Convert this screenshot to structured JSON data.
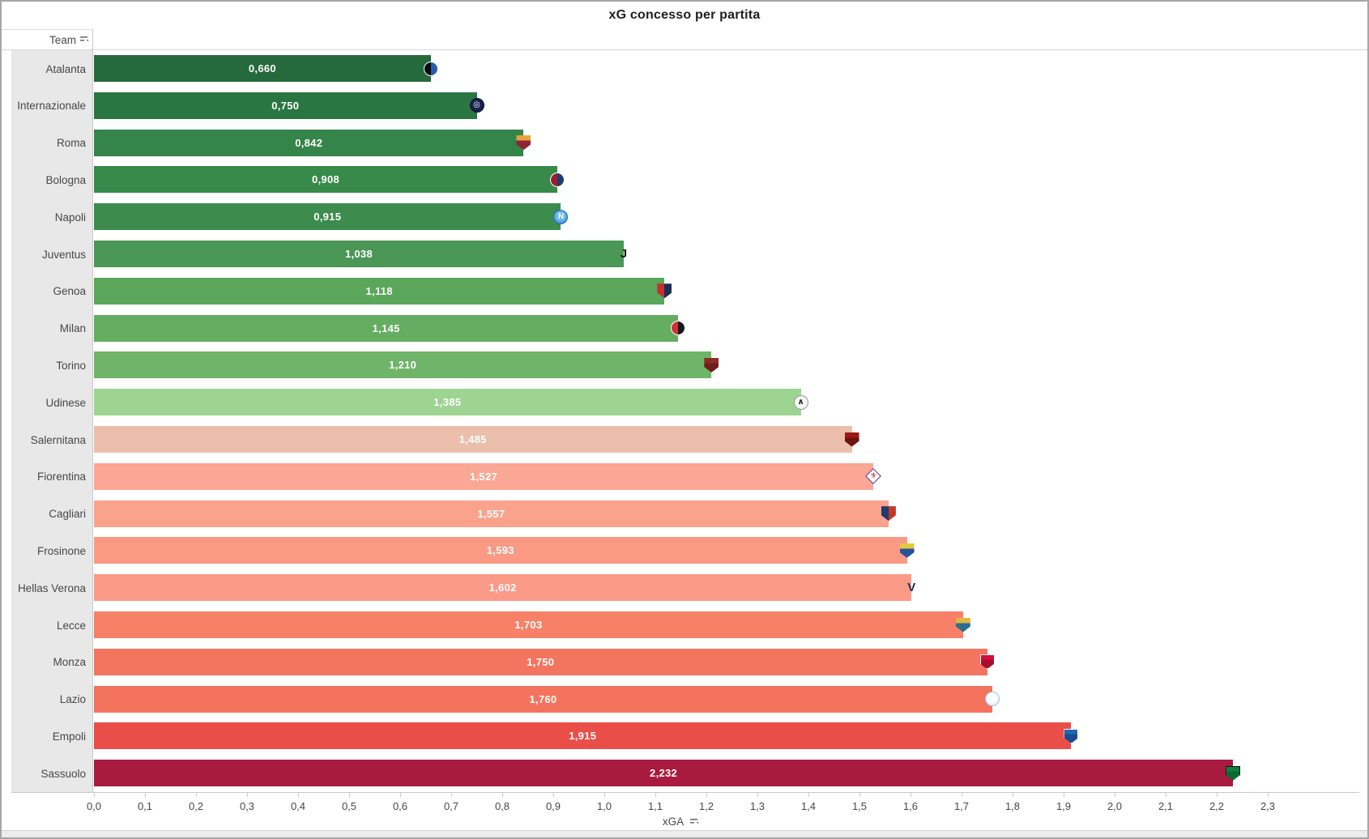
{
  "title": "xG concesso per partita",
  "y_header": {
    "label": "Team",
    "sort_icon": "sort-descending-icon"
  },
  "x_axis": {
    "label": "xGA",
    "sort_icon": "sort-descending-icon",
    "min": 0.0,
    "max": 2.3,
    "ticks": [
      "0,0",
      "0,1",
      "0,2",
      "0,3",
      "0,4",
      "0,5",
      "0,6",
      "0,7",
      "0,8",
      "0,9",
      "1,0",
      "1,1",
      "1,2",
      "1,3",
      "1,4",
      "1,5",
      "1,6",
      "1,7",
      "1,8",
      "1,9",
      "2,0",
      "2,1",
      "2,2",
      "2,3"
    ]
  },
  "chart_data": {
    "type": "bar",
    "orientation": "horizontal",
    "title": "xG concesso per partita",
    "xlabel": "xGA",
    "ylabel": "Team",
    "xlim": [
      0.0,
      2.3
    ],
    "grid": false,
    "legend": false,
    "categories": [
      "Atalanta",
      "Internazionale",
      "Roma",
      "Bologna",
      "Napoli",
      "Juventus",
      "Genoa",
      "Milan",
      "Torino",
      "Udinese",
      "Salernitana",
      "Fiorentina",
      "Cagliari",
      "Frosinone",
      "Hellas Verona",
      "Lecce",
      "Monza",
      "Lazio",
      "Empoli",
      "Sassuolo"
    ],
    "values": [
      0.66,
      0.75,
      0.842,
      0.908,
      0.915,
      1.038,
      1.118,
      1.145,
      1.21,
      1.385,
      1.485,
      1.527,
      1.557,
      1.593,
      1.602,
      1.703,
      1.75,
      1.76,
      1.915,
      2.232
    ],
    "value_labels": [
      "0,660",
      "0,750",
      "0,842",
      "0,908",
      "0,915",
      "1,038",
      "1,118",
      "1,145",
      "1,210",
      "1,385",
      "1,485",
      "1,527",
      "1,557",
      "1,593",
      "1,602",
      "1,703",
      "1,750",
      "1,760",
      "1,915",
      "2,232"
    ],
    "bar_colors": [
      "#256a3d",
      "#2a7642",
      "#358449",
      "#388a4a",
      "#3d8c4d",
      "#4b9755",
      "#5aa65b",
      "#64ad61",
      "#6fb468",
      "#9ed491",
      "#ebbfac",
      "#fba795",
      "#fba28d",
      "#fa9a84",
      "#fb9b87",
      "#f78067",
      "#f4755f",
      "#f4735d",
      "#ea4e49",
      "#a81a3e"
    ]
  },
  "teams": [
    {
      "name": "Atalanta",
      "value": 0.66,
      "label": "0,660",
      "color": "#256a3d",
      "logo": {
        "icon": "atalanta-crest-icon",
        "shape": "circle",
        "grad": "h",
        "c1": "#0a0a0a",
        "c2": "#2a5cad",
        "glyph": "",
        "gc": "#ffffff",
        "bd": "#ffffff"
      }
    },
    {
      "name": "Internazionale",
      "value": 0.75,
      "label": "0,750",
      "color": "#2a7642",
      "logo": {
        "icon": "inter-crest-icon",
        "shape": "circle",
        "grad": "s",
        "c1": "#16214c",
        "c2": "#16214c",
        "glyph": "◎",
        "gc": "#ffffff",
        "bd": "#0d1430"
      }
    },
    {
      "name": "Roma",
      "value": 0.842,
      "label": "0,842",
      "color": "#358449",
      "logo": {
        "icon": "roma-crest-icon",
        "shape": "shield",
        "grad": "v",
        "c1": "#e9a33c",
        "c2": "#8e2638",
        "glyph": "",
        "gc": "#ffffff",
        "bd": ""
      }
    },
    {
      "name": "Bologna",
      "value": 0.908,
      "label": "0,908",
      "color": "#388a4a",
      "logo": {
        "icon": "bologna-crest-icon",
        "shape": "circle",
        "grad": "h",
        "c1": "#9e1c32",
        "c2": "#1c3e6f",
        "glyph": "",
        "gc": "#ffffff",
        "bd": "#ffffff"
      }
    },
    {
      "name": "Napoli",
      "value": 0.915,
      "label": "0,915",
      "color": "#3d8c4d",
      "logo": {
        "icon": "napoli-crest-icon",
        "shape": "circle",
        "grad": "r",
        "c1": "#6fb9e8",
        "c2": "#1b6fb8",
        "glyph": "N",
        "gc": "#ffffff",
        "bd": "#1b6fb8"
      }
    },
    {
      "name": "Juventus",
      "value": 1.038,
      "label": "1,038",
      "color": "#4b9755",
      "logo": {
        "icon": "juventus-crest-icon",
        "shape": "plain",
        "grad": "s",
        "c1": "",
        "c2": "",
        "glyph": "J",
        "gc": "#111111",
        "bd": ""
      }
    },
    {
      "name": "Genoa",
      "value": 1.118,
      "label": "1,118",
      "color": "#5aa65b",
      "logo": {
        "icon": "genoa-crest-icon",
        "shape": "shield",
        "grad": "h",
        "c1": "#c53030",
        "c2": "#1e2d56",
        "glyph": "",
        "gc": "#e8c83c",
        "bd": ""
      }
    },
    {
      "name": "Milan",
      "value": 1.145,
      "label": "1,145",
      "color": "#64ad61",
      "logo": {
        "icon": "milan-crest-icon",
        "shape": "circle",
        "grad": "h",
        "c1": "#d03238",
        "c2": "#17181d",
        "glyph": "",
        "gc": "#ffffff",
        "bd": "#ffffff"
      }
    },
    {
      "name": "Torino",
      "value": 1.21,
      "label": "1,210",
      "color": "#6fb468",
      "logo": {
        "icon": "torino-crest-icon",
        "shape": "shield",
        "grad": "v",
        "c1": "#8c2b23",
        "c2": "#6f1f1b",
        "glyph": "",
        "gc": "#e8c83c",
        "bd": ""
      }
    },
    {
      "name": "Udinese",
      "value": 1.385,
      "label": "1,385",
      "color": "#9ed491",
      "logo": {
        "icon": "udinese-crest-icon",
        "shape": "circle",
        "grad": "s",
        "c1": "#f4f4f4",
        "c2": "#f4f4f4",
        "glyph": "∧",
        "gc": "#222222",
        "bd": "#999999"
      }
    },
    {
      "name": "Salernitana",
      "value": 1.485,
      "label": "1,485",
      "color": "#ebbfac",
      "logo": {
        "icon": "salernitana-crest-icon",
        "shape": "shield",
        "grad": "v",
        "c1": "#9a1b15",
        "c2": "#701210",
        "glyph": "",
        "gc": "#ffffff",
        "bd": ""
      }
    },
    {
      "name": "Fiorentina",
      "value": 1.527,
      "label": "1,527",
      "color": "#fba795",
      "logo": {
        "icon": "fiorentina-crest-icon",
        "shape": "diamond",
        "grad": "s",
        "c1": "#ffffff",
        "c2": "#ffffff",
        "glyph": "⚜",
        "gc": "#b3252e",
        "bd": "#5b2d8e"
      }
    },
    {
      "name": "Cagliari",
      "value": 1.557,
      "label": "1,557",
      "color": "#fba28d",
      "logo": {
        "icon": "cagliari-crest-icon",
        "shape": "shield",
        "grad": "h",
        "c1": "#1d3c6e",
        "c2": "#c0392b",
        "glyph": "",
        "gc": "#ffffff",
        "bd": ""
      }
    },
    {
      "name": "Frosinone",
      "value": 1.593,
      "label": "1,593",
      "color": "#fa9a84",
      "logo": {
        "icon": "frosinone-crest-icon",
        "shape": "shield",
        "grad": "v",
        "c1": "#e3c93f",
        "c2": "#28549c",
        "glyph": "",
        "gc": "#e3c93f",
        "bd": ""
      }
    },
    {
      "name": "Hellas Verona",
      "value": 1.602,
      "label": "1,602",
      "color": "#fb9b87",
      "logo": {
        "icon": "hellas-verona-crest-icon",
        "shape": "plain",
        "grad": "s",
        "c1": "",
        "c2": "",
        "glyph": "V",
        "gc": "#1a2c5b",
        "bd": ""
      }
    },
    {
      "name": "Lecce",
      "value": 1.703,
      "label": "1,703",
      "color": "#f78067",
      "logo": {
        "icon": "lecce-crest-icon",
        "shape": "shield",
        "grad": "v",
        "c1": "#e0b53f",
        "c2": "#2b6f8e",
        "glyph": "",
        "gc": "#ffffff",
        "bd": ""
      }
    },
    {
      "name": "Monza",
      "value": 1.75,
      "label": "1,750",
      "color": "#f4755f",
      "logo": {
        "icon": "monza-crest-icon",
        "shape": "shield",
        "grad": "v",
        "c1": "#d2103c",
        "c2": "#a80d30",
        "glyph": "",
        "gc": "#ffffff",
        "bd": "#ffffff"
      }
    },
    {
      "name": "Lazio",
      "value": 1.76,
      "label": "1,760",
      "color": "#f4735d",
      "logo": {
        "icon": "lazio-crest-icon",
        "shape": "circle",
        "grad": "r",
        "c1": "#fdfeff",
        "c2": "#cbe3f2",
        "glyph": "",
        "gc": "#d9b44a",
        "bd": "#9cc7e4"
      }
    },
    {
      "name": "Empoli",
      "value": 1.915,
      "label": "1,915",
      "color": "#ea4e49",
      "logo": {
        "icon": "empoli-crest-icon",
        "shape": "shield",
        "grad": "v",
        "c1": "#2166b2",
        "c2": "#174e8e",
        "glyph": "",
        "gc": "#ffffff",
        "bd": "#ffffff"
      }
    },
    {
      "name": "Sassuolo",
      "value": 2.232,
      "label": "2,232",
      "color": "#a81a3e",
      "logo": {
        "icon": "sassuolo-crest-icon",
        "shape": "shield",
        "grad": "v",
        "c1": "#0d7f3f",
        "c2": "#0a6a34",
        "glyph": "",
        "gc": "#ffffff",
        "bd": "#111111"
      }
    }
  ]
}
